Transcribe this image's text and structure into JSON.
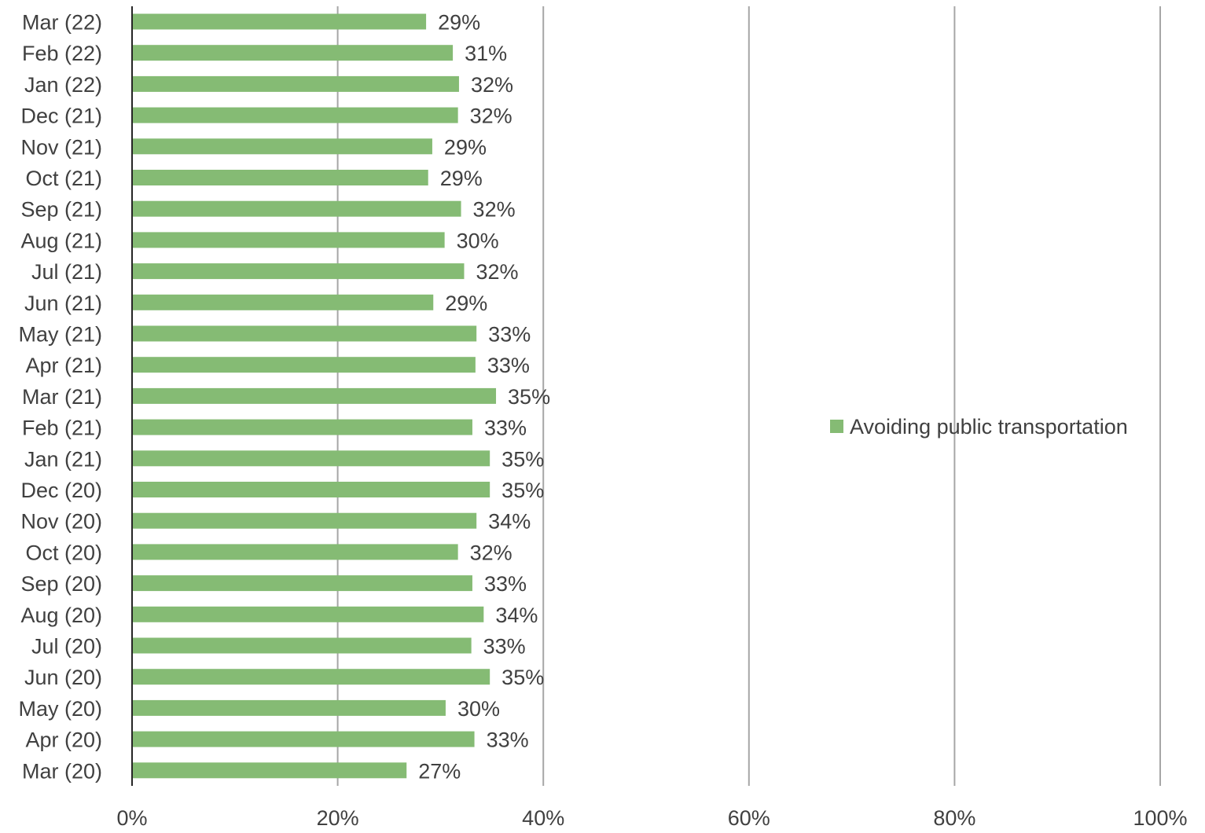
{
  "chart_data": {
    "type": "bar",
    "orientation": "horizontal",
    "categories": [
      "Mar (22)",
      "Feb (22)",
      "Jan (22)",
      "Dec (21)",
      "Nov (21)",
      "Oct (21)",
      "Sep (21)",
      "Aug (21)",
      "Jul (21)",
      "Jun (21)",
      "May (21)",
      "Apr (21)",
      "Mar (21)",
      "Feb (21)",
      "Jan (21)",
      "Dec (20)",
      "Nov (20)",
      "Oct (20)",
      "Sep (20)",
      "Aug (20)",
      "Jul (20)",
      "Jun (20)",
      "May (20)",
      "Apr (20)",
      "Mar (20)"
    ],
    "series": [
      {
        "name": "Avoiding public transportation",
        "values": [
          29,
          31,
          32,
          32,
          29,
          29,
          32,
          30,
          32,
          29,
          33,
          33,
          35,
          33,
          35,
          35,
          34,
          32,
          33,
          34,
          33,
          35,
          30,
          33,
          27
        ],
        "bar_values": [
          28.6,
          31.2,
          31.8,
          31.7,
          29.2,
          28.8,
          32.0,
          30.4,
          32.3,
          29.3,
          33.5,
          33.4,
          35.4,
          33.1,
          34.8,
          34.8,
          33.5,
          31.7,
          33.1,
          34.2,
          33.0,
          34.8,
          30.5,
          33.3,
          26.7
        ],
        "labels": [
          "29%",
          "31%",
          "32%",
          "32%",
          "29%",
          "29%",
          "32%",
          "30%",
          "32%",
          "29%",
          "33%",
          "33%",
          "35%",
          "33%",
          "35%",
          "35%",
          "34%",
          "32%",
          "33%",
          "34%",
          "33%",
          "35%",
          "30%",
          "33%",
          "27%"
        ],
        "color": "#85bb74"
      }
    ],
    "xlim": [
      0,
      100
    ],
    "x_ticks": [
      0,
      20,
      40,
      60,
      80,
      100
    ],
    "x_tick_labels": [
      "0%",
      "20%",
      "40%",
      "60%",
      "80%",
      "100%"
    ],
    "xlabel": "",
    "ylabel": "",
    "title": "",
    "grid": true,
    "legend_position": "right",
    "colors": {
      "bar": "#85bb74",
      "grid": "#a6a6a6",
      "axis": "#262626",
      "text": "#404040"
    }
  }
}
